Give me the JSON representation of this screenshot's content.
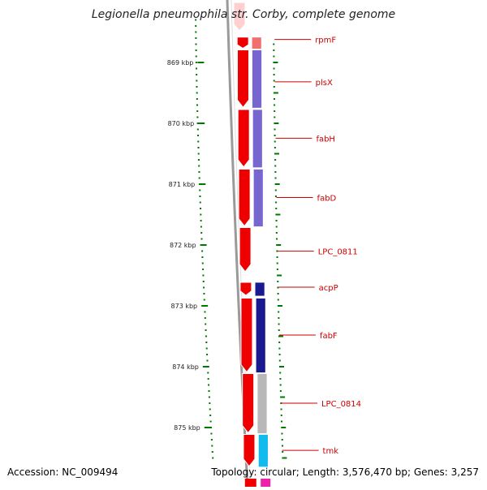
{
  "title": "Legionella pneumophila str. Corby, complete genome",
  "accession_text": "Accession: NC_009494",
  "summary_text": "Topology: circular; Length: 3,576,470 bp; Genes: 3,257",
  "colors": {
    "forward_cds": "#ee0000",
    "fabH_cog": "#7766d0",
    "fabF_cog": "#1a1a90",
    "LPC_0814_cog": "#b8b8b8",
    "tmk_cog": "#11bbee",
    "rpmF_cog": "#f07070",
    "label": "#cc0000",
    "tick": "#007700",
    "backbone": "#888888"
  },
  "scale_ticks": [
    {
      "position_kbp": 869,
      "label": "869 kbp"
    },
    {
      "position_kbp": 870,
      "label": "870 kbp"
    },
    {
      "position_kbp": 871,
      "label": "871 kbp"
    },
    {
      "position_kbp": 872,
      "label": "872 kbp"
    },
    {
      "position_kbp": 873,
      "label": "873 kbp"
    },
    {
      "position_kbp": 874,
      "label": "874 kbp"
    },
    {
      "position_kbp": 875,
      "label": "875 kbp"
    }
  ],
  "genes": [
    {
      "name": "rpmF",
      "start_kbp": 868.57,
      "end_kbp": 868.78,
      "strand": "+"
    },
    {
      "name": "plsX",
      "start_kbp": 868.78,
      "end_kbp": 869.75,
      "strand": "+"
    },
    {
      "name": "fabH",
      "start_kbp": 869.76,
      "end_kbp": 870.73,
      "strand": "+"
    },
    {
      "name": "fabD",
      "start_kbp": 870.74,
      "end_kbp": 871.7,
      "strand": "+"
    },
    {
      "name": "LPC_0811",
      "start_kbp": 871.7,
      "end_kbp": 872.45,
      "strand": "+"
    },
    {
      "name": "acpP",
      "start_kbp": 872.6,
      "end_kbp": 872.84,
      "strand": "+"
    },
    {
      "name": "fabF",
      "start_kbp": 872.86,
      "end_kbp": 874.1,
      "strand": "+"
    },
    {
      "name": "LPC_0814",
      "start_kbp": 874.1,
      "end_kbp": 875.1,
      "strand": "+"
    },
    {
      "name": "tmk",
      "start_kbp": 875.1,
      "end_kbp": 875.65,
      "strand": "+"
    }
  ]
}
